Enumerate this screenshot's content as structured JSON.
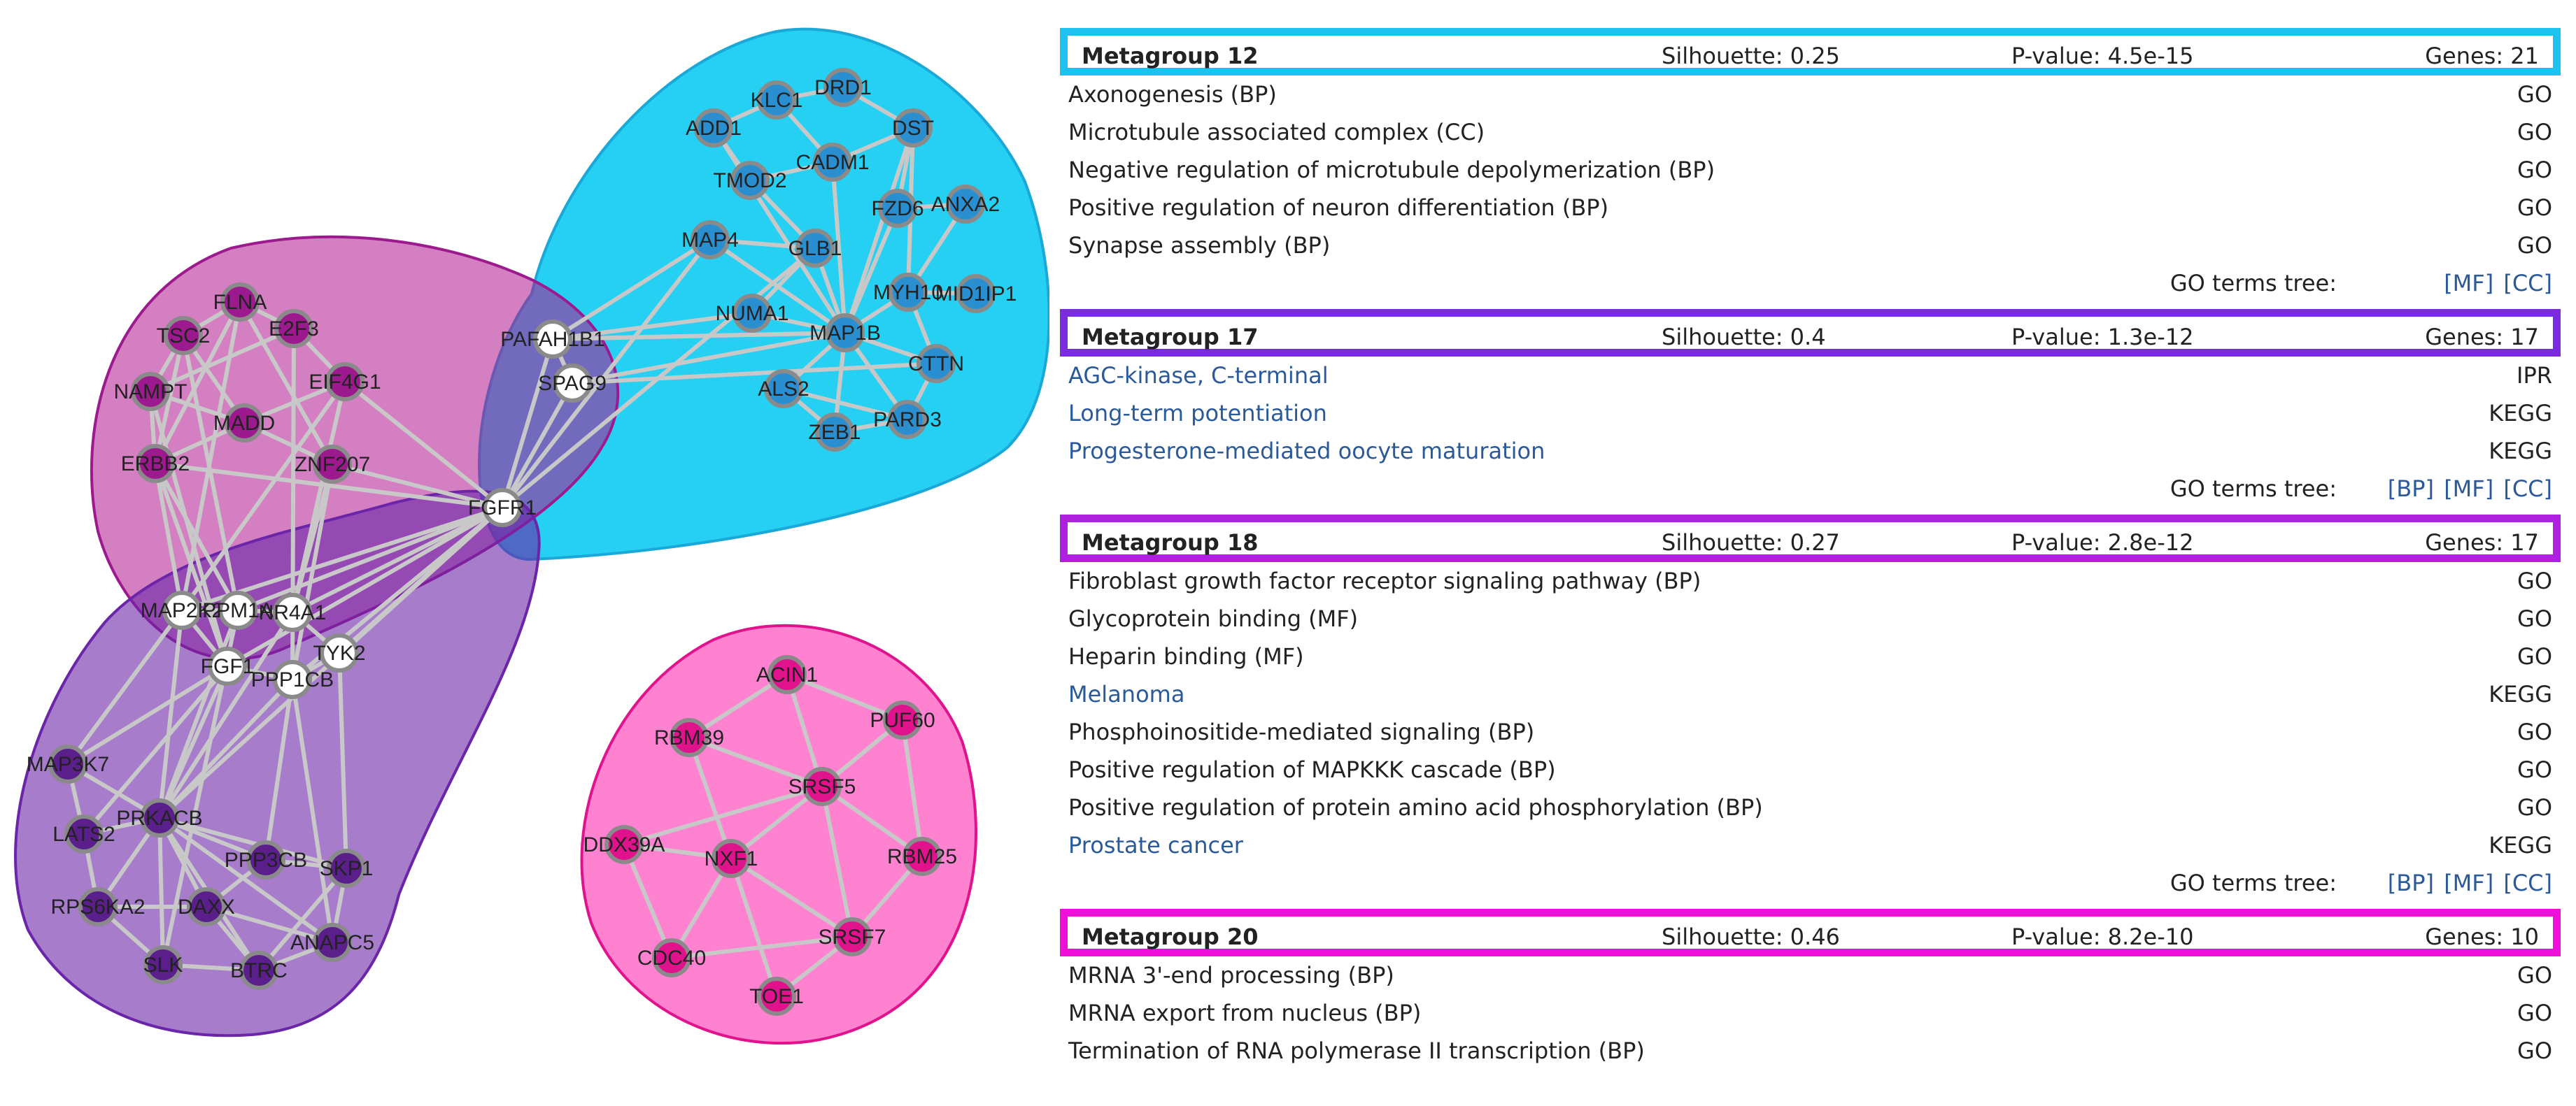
{
  "network": {
    "nodes": [
      {
        "id": "DRD1",
        "label": "DRD1",
        "color": "#2a8fd0",
        "text": "dark"
      },
      {
        "id": "KLC1",
        "label": "KLC1",
        "color": "#2a8fd0",
        "text": "dark"
      },
      {
        "id": "ADD1",
        "label": "ADD1",
        "color": "#2a8fd0",
        "text": "dark"
      },
      {
        "id": "DST",
        "label": "DST",
        "color": "#2a8fd0",
        "text": "dark"
      },
      {
        "id": "CADM1",
        "label": "CADM1",
        "color": "#2a8fd0",
        "text": "dark"
      },
      {
        "id": "TMOD2",
        "label": "TMOD2",
        "color": "#2a8fd0",
        "text": "dark"
      },
      {
        "id": "FZD6",
        "label": "FZD6",
        "color": "#2a8fd0",
        "text": "dark"
      },
      {
        "id": "ANXA2",
        "label": "ANXA2",
        "color": "#2a8fd0",
        "text": "dark"
      },
      {
        "id": "MAP4",
        "label": "MAP4",
        "color": "#2a8fd0",
        "text": "dark"
      },
      {
        "id": "GLB1",
        "label": "GLB1",
        "color": "#2a8fd0",
        "text": "dark"
      },
      {
        "id": "MYH10",
        "label": "MYH10",
        "color": "#2a8fd0",
        "text": "dark"
      },
      {
        "id": "MID1IP1",
        "label": "MID1IP1",
        "color": "#2a8fd0",
        "text": "dark"
      },
      {
        "id": "NUMA1",
        "label": "NUMA1",
        "color": "#2a8fd0",
        "text": "dark"
      },
      {
        "id": "MAP1B",
        "label": "MAP1B",
        "color": "#2a8fd0",
        "text": "dark"
      },
      {
        "id": "CTTN",
        "label": "CTTN",
        "color": "#2a8fd0",
        "text": "dark"
      },
      {
        "id": "ALS2",
        "label": "ALS2",
        "color": "#2a8fd0",
        "text": "dark"
      },
      {
        "id": "PARD3",
        "label": "PARD3",
        "color": "#2a8fd0",
        "text": "dark"
      },
      {
        "id": "ZEB1",
        "label": "ZEB1",
        "color": "#2a8fd0",
        "text": "dark"
      },
      {
        "id": "PAFAH1B1",
        "label": "PAFAH1B1",
        "color": "#ffffff",
        "text": "dark"
      },
      {
        "id": "SPAG9",
        "label": "SPAG9",
        "color": "#ffffff",
        "text": "dark"
      },
      {
        "id": "FGFR1",
        "label": "FGFR1",
        "color": "#ffffff",
        "text": "dark"
      },
      {
        "id": "FLNA",
        "label": "FLNA",
        "color": "#9c1a8e",
        "text": "dark"
      },
      {
        "id": "TSC2",
        "label": "TSC2",
        "color": "#9c1a8e",
        "text": "dark"
      },
      {
        "id": "E2F3",
        "label": "E2F3",
        "color": "#9c1a8e",
        "text": "dark"
      },
      {
        "id": "EIF4G1",
        "label": "EIF4G1",
        "color": "#9c1a8e",
        "text": "dark"
      },
      {
        "id": "NAMPT",
        "label": "NAMPT",
        "color": "#9c1a8e",
        "text": "dark"
      },
      {
        "id": "MADD",
        "label": "MADD",
        "color": "#9c1a8e",
        "text": "dark"
      },
      {
        "id": "ERBB2",
        "label": "ERBB2",
        "color": "#9c1a8e",
        "text": "dark"
      },
      {
        "id": "ZNF207",
        "label": "ZNF207",
        "color": "#9c1a8e",
        "text": "dark"
      },
      {
        "id": "MAP2K2",
        "label": "MAP2K2",
        "color": "#ffffff",
        "text": "dark"
      },
      {
        "id": "PPM1A",
        "label": "PPM1A",
        "color": "#ffffff",
        "text": "dark"
      },
      {
        "id": "NR4A1",
        "label": "NR4A1",
        "color": "#ffffff",
        "text": "dark"
      },
      {
        "id": "TYK2",
        "label": "TYK2",
        "color": "#ffffff",
        "text": "dark"
      },
      {
        "id": "FGF1",
        "label": "FGF1",
        "color": "#ffffff",
        "text": "dark"
      },
      {
        "id": "PPP1CB",
        "label": "PPP1CB",
        "color": "#ffffff",
        "text": "dark"
      },
      {
        "id": "MAP3K7",
        "label": "MAP3K7",
        "color": "#5a1f8a",
        "text": "dark"
      },
      {
        "id": "LATS2",
        "label": "LATS2",
        "color": "#5a1f8a",
        "text": "dark"
      },
      {
        "id": "PRKACB",
        "label": "PRKACB",
        "color": "#5a1f8a",
        "text": "dark"
      },
      {
        "id": "PPP3CB",
        "label": "PPP3CB",
        "color": "#5a1f8a",
        "text": "dark"
      },
      {
        "id": "SKP1",
        "label": "SKP1",
        "color": "#5a1f8a",
        "text": "dark"
      },
      {
        "id": "RPS6KA2",
        "label": "RPS6KA2",
        "color": "#5a1f8a",
        "text": "dark"
      },
      {
        "id": "DAXX",
        "label": "DAXX",
        "color": "#5a1f8a",
        "text": "dark"
      },
      {
        "id": "ANAPC5",
        "label": "ANAPC5",
        "color": "#5a1f8a",
        "text": "dark"
      },
      {
        "id": "SLK",
        "label": "SLK",
        "color": "#5a1f8a",
        "text": "dark"
      },
      {
        "id": "BTRC",
        "label": "BTRC",
        "color": "#5a1f8a",
        "text": "dark"
      },
      {
        "id": "ACIN1",
        "label": "ACIN1",
        "color": "#e0128c",
        "text": "dark"
      },
      {
        "id": "RBM39",
        "label": "RBM39",
        "color": "#e0128c",
        "text": "dark"
      },
      {
        "id": "PUF60",
        "label": "PUF60",
        "color": "#e0128c",
        "text": "dark"
      },
      {
        "id": "SRSF5",
        "label": "SRSF5",
        "color": "#e0128c",
        "text": "dark"
      },
      {
        "id": "DDX39A",
        "label": "DDX39A",
        "color": "#e0128c",
        "text": "dark"
      },
      {
        "id": "NXF1",
        "label": "NXF1",
        "color": "#e0128c",
        "text": "dark"
      },
      {
        "id": "RBM25",
        "label": "RBM25",
        "color": "#e0128c",
        "text": "dark"
      },
      {
        "id": "SRSF7",
        "label": "SRSF7",
        "color": "#e0128c",
        "text": "dark"
      },
      {
        "id": "CDC40",
        "label": "CDC40",
        "color": "#e0128c",
        "text": "dark"
      },
      {
        "id": "TOE1",
        "label": "TOE1",
        "color": "#e0128c",
        "text": "dark"
      }
    ],
    "edges": [
      [
        "DRD1",
        "KLC1"
      ],
      [
        "DRD1",
        "DST"
      ],
      [
        "KLC1",
        "ADD1"
      ],
      [
        "KLC1",
        "CADM1"
      ],
      [
        "ADD1",
        "TMOD2"
      ],
      [
        "ADD1",
        "MAP1B"
      ],
      [
        "DST",
        "CADM1"
      ],
      [
        "DST",
        "MAP1B"
      ],
      [
        "DST",
        "FZD6"
      ],
      [
        "DST",
        "MYH10"
      ],
      [
        "CADM1",
        "TMOD2"
      ],
      [
        "CADM1",
        "MAP1B"
      ],
      [
        "TMOD2",
        "GLB1"
      ],
      [
        "FZD6",
        "ANXA2"
      ],
      [
        "FZD6",
        "MAP1B"
      ],
      [
        "ANXA2",
        "MYH10"
      ],
      [
        "MAP4",
        "GLB1"
      ],
      [
        "MAP4",
        "MAP1B"
      ],
      [
        "MAP4",
        "PAFAH1B1"
      ],
      [
        "GLB1",
        "MAP1B"
      ],
      [
        "GLB1",
        "NUMA1"
      ],
      [
        "MYH10",
        "MAP1B"
      ],
      [
        "MYH10",
        "MID1IP1"
      ],
      [
        "MYH10",
        "CTTN"
      ],
      [
        "NUMA1",
        "MAP1B"
      ],
      [
        "NUMA1",
        "PAFAH1B1"
      ],
      [
        "MAP1B",
        "CTTN"
      ],
      [
        "MAP1B",
        "ALS2"
      ],
      [
        "MAP1B",
        "PARD3"
      ],
      [
        "MAP1B",
        "ZEB1"
      ],
      [
        "MAP1B",
        "PAFAH1B1"
      ],
      [
        "MAP1B",
        "SPAG9"
      ],
      [
        "ALS2",
        "PARD3"
      ],
      [
        "ALS2",
        "ZEB1"
      ],
      [
        "CTTN",
        "PARD3"
      ],
      [
        "PARD3",
        "ZEB1"
      ],
      [
        "PAFAH1B1",
        "SPAG9"
      ],
      [
        "PAFAH1B1",
        "FGFR1"
      ],
      [
        "SPAG9",
        "FGFR1"
      ],
      [
        "SPAG9",
        "CTTN"
      ],
      [
        "PAFAH1B1",
        "MAP1B"
      ],
      [
        "FGFR1",
        "MAP2K2"
      ],
      [
        "FGFR1",
        "PPM1A"
      ],
      [
        "FGFR1",
        "NR4A1"
      ],
      [
        "FGFR1",
        "FGF1"
      ],
      [
        "FGFR1",
        "PPP1CB"
      ],
      [
        "FGFR1",
        "TYK2"
      ],
      [
        "FGFR1",
        "PRKACB"
      ],
      [
        "FGFR1",
        "ZNF207"
      ],
      [
        "FGFR1",
        "ERBB2"
      ],
      [
        "FGFR1",
        "EIF4G1"
      ],
      [
        "FGFR1",
        "MAP4"
      ],
      [
        "FGFR1",
        "GLB1"
      ],
      [
        "FLNA",
        "TSC2"
      ],
      [
        "FLNA",
        "E2F3"
      ],
      [
        "FLNA",
        "MAP2K2"
      ],
      [
        "FLNA",
        "ERBB2"
      ],
      [
        "FLNA",
        "ZNF207"
      ],
      [
        "TSC2",
        "NAMPT"
      ],
      [
        "TSC2",
        "MADD"
      ],
      [
        "TSC2",
        "ERBB2"
      ],
      [
        "TSC2",
        "PPM1A"
      ],
      [
        "E2F3",
        "EIF4G1"
      ],
      [
        "E2F3",
        "NAMPT"
      ],
      [
        "E2F3",
        "PPP1CB"
      ],
      [
        "EIF4G1",
        "MADD"
      ],
      [
        "EIF4G1",
        "MAP2K2"
      ],
      [
        "EIF4G1",
        "NR4A1"
      ],
      [
        "NAMPT",
        "ERBB2"
      ],
      [
        "NAMPT",
        "MADD"
      ],
      [
        "NAMPT",
        "FGF1"
      ],
      [
        "MADD",
        "ERBB2"
      ],
      [
        "MADD",
        "ZNF207"
      ],
      [
        "ERBB2",
        "MAP2K2"
      ],
      [
        "ERBB2",
        "PPM1A"
      ],
      [
        "ERBB2",
        "FGF1"
      ],
      [
        "ZNF207",
        "NR4A1"
      ],
      [
        "ZNF207",
        "PPP1CB"
      ],
      [
        "MAP2K2",
        "PPM1A"
      ],
      [
        "MAP2K2",
        "FGF1"
      ],
      [
        "PPM1A",
        "NR4A1"
      ],
      [
        "NR4A1",
        "TYK2"
      ],
      [
        "FGF1",
        "PPP1CB"
      ],
      [
        "PPP1CB",
        "TYK2"
      ],
      [
        "MAP3K7",
        "MAP2K2"
      ],
      [
        "MAP3K7",
        "PRKACB"
      ],
      [
        "MAP3K7",
        "LATS2"
      ],
      [
        "LATS2",
        "PRKACB"
      ],
      [
        "LATS2",
        "FGF1"
      ],
      [
        "PRKACB",
        "PPP3CB"
      ],
      [
        "PRKACB",
        "SKP1"
      ],
      [
        "PRKACB",
        "RPS6KA2"
      ],
      [
        "PRKACB",
        "DAXX"
      ],
      [
        "PRKACB",
        "SLK"
      ],
      [
        "PRKACB",
        "BTRC"
      ],
      [
        "PRKACB",
        "MAP2K2"
      ],
      [
        "PRKACB",
        "PPM1A"
      ],
      [
        "PRKACB",
        "FGF1"
      ],
      [
        "PRKACB",
        "PPP1CB"
      ],
      [
        "PRKACB",
        "NR4A1"
      ],
      [
        "PRKACB",
        "ANAPC5"
      ],
      [
        "PPP3CB",
        "SKP1"
      ],
      [
        "PPP3CB",
        "DAXX"
      ],
      [
        "PPP3CB",
        "PPP1CB"
      ],
      [
        "SKP1",
        "ANAPC5"
      ],
      [
        "SKP1",
        "BTRC"
      ],
      [
        "SKP1",
        "TYK2"
      ],
      [
        "RPS6KA2",
        "DAXX"
      ],
      [
        "RPS6KA2",
        "SLK"
      ],
      [
        "RPS6KA2",
        "LATS2"
      ],
      [
        "DAXX",
        "BTRC"
      ],
      [
        "DAXX",
        "ANAPC5"
      ],
      [
        "SLK",
        "BTRC"
      ],
      [
        "BTRC",
        "ANAPC5"
      ],
      [
        "ANAPC5",
        "PPP1CB"
      ],
      [
        "MAP3K7",
        "FGF1"
      ],
      [
        "SLK",
        "PPM1A"
      ],
      [
        "ACIN1",
        "RBM39"
      ],
      [
        "ACIN1",
        "PUF60"
      ],
      [
        "ACIN1",
        "SRSF5"
      ],
      [
        "RBM39",
        "SRSF5"
      ],
      [
        "RBM39",
        "NXF1"
      ],
      [
        "PUF60",
        "SRSF5"
      ],
      [
        "PUF60",
        "RBM25"
      ],
      [
        "SRSF5",
        "NXF1"
      ],
      [
        "SRSF5",
        "RBM25"
      ],
      [
        "SRSF5",
        "SRSF7"
      ],
      [
        "SRSF5",
        "DDX39A"
      ],
      [
        "DDX39A",
        "NXF1"
      ],
      [
        "DDX39A",
        "CDC40"
      ],
      [
        "NXF1",
        "SRSF7"
      ],
      [
        "NXF1",
        "CDC40"
      ],
      [
        "NXF1",
        "TOE1"
      ],
      [
        "RBM25",
        "SRSF7"
      ],
      [
        "SRSF7",
        "TOE1"
      ],
      [
        "SRSF7",
        "CDC40"
      ]
    ],
    "groups": [
      {
        "name": "cyan",
        "color": "#00c8f0"
      },
      {
        "name": "pink",
        "color": "#ff2fb3"
      },
      {
        "name": "magenta",
        "color": "#b0168f"
      },
      {
        "name": "purple",
        "color": "#6a25a8"
      }
    ]
  },
  "metagroups": [
    {
      "name": "Metagroup 12",
      "silhouette": "Silhouette: 0.25",
      "pvalue": "P-value: 4.5e-15",
      "genes": "Genes: 21",
      "border": "#1cc3f0",
      "terms": [
        {
          "name": "Axonogenesis (BP)",
          "source": "GO",
          "link": false
        },
        {
          "name": "Microtubule associated complex (CC)",
          "source": "GO",
          "link": false
        },
        {
          "name": "Negative regulation of microtubule depolymerization (BP)",
          "source": "GO",
          "link": false
        },
        {
          "name": "Positive regulation of neuron differentiation (BP)",
          "source": "GO",
          "link": false
        },
        {
          "name": "Synapse assembly (BP)",
          "source": "GO",
          "link": false
        }
      ],
      "tree_label": "GO terms tree:",
      "tree_links": "[MF] [CC]"
    },
    {
      "name": "Metagroup 17",
      "silhouette": "Silhouette: 0.4",
      "pvalue": "P-value: 1.3e-12",
      "genes": "Genes: 17",
      "border": "#7a2be0",
      "terms": [
        {
          "name": "AGC-kinase, C-terminal",
          "source": "IPR",
          "link": true
        },
        {
          "name": "Long-term potentiation",
          "source": "KEGG",
          "link": true
        },
        {
          "name": "Progesterone-mediated oocyte maturation",
          "source": "KEGG",
          "link": true
        }
      ],
      "tree_label": "GO terms tree:",
      "tree_links": "[BP] [MF] [CC]"
    },
    {
      "name": "Metagroup 18",
      "silhouette": "Silhouette: 0.27",
      "pvalue": "P-value: 2.8e-12",
      "genes": "Genes: 17",
      "border": "#b020e0",
      "terms": [
        {
          "name": "Fibroblast growth factor receptor signaling pathway (BP)",
          "source": "GO",
          "link": false
        },
        {
          "name": "Glycoprotein binding (MF)",
          "source": "GO",
          "link": false
        },
        {
          "name": "Heparin binding (MF)",
          "source": "GO",
          "link": false
        },
        {
          "name": "Melanoma",
          "source": "KEGG",
          "link": true
        },
        {
          "name": "Phosphoinositide-mediated signaling (BP)",
          "source": "GO",
          "link": false
        },
        {
          "name": "Positive regulation of MAPKKK cascade (BP)",
          "source": "GO",
          "link": false
        },
        {
          "name": "Positive regulation of protein amino acid phosphorylation (BP)",
          "source": "GO",
          "link": false
        },
        {
          "name": "Prostate cancer",
          "source": "KEGG",
          "link": true
        }
      ],
      "tree_label": "GO terms tree:",
      "tree_links": "[BP] [MF] [CC]"
    },
    {
      "name": "Metagroup 20",
      "silhouette": "Silhouette: 0.46",
      "pvalue": "P-value: 8.2e-10",
      "genes": "Genes: 10",
      "border": "#ee10d8",
      "terms": [
        {
          "name": "MRNA 3'-end processing (BP)",
          "source": "GO",
          "link": false
        },
        {
          "name": "MRNA export from nucleus (BP)",
          "source": "GO",
          "link": false
        },
        {
          "name": "Termination of RNA polymerase II transcription (BP)",
          "source": "GO",
          "link": false
        }
      ],
      "tree_label": "",
      "tree_links": ""
    }
  ]
}
